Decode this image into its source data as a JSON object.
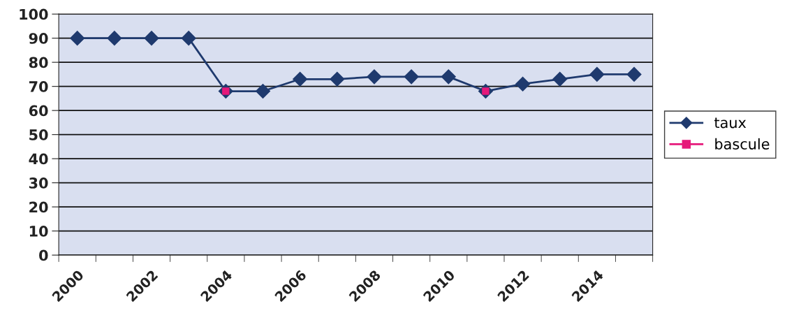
{
  "chart_data": {
    "type": "line",
    "categories": [
      "2000",
      null,
      "2002",
      null,
      "2004",
      null,
      "2006",
      null,
      "2008",
      null,
      "2010",
      null,
      "2012",
      null,
      "2014",
      null
    ],
    "series": [
      {
        "name": "taux",
        "color": "#1f3a6e",
        "marker": "diamond",
        "values": [
          90,
          90,
          90,
          90,
          68,
          68,
          73,
          73,
          74,
          74,
          74,
          68,
          71,
          73,
          75,
          75
        ]
      },
      {
        "name": "bascule",
        "type": "scatter",
        "color": "#e6197a",
        "marker": "square",
        "values": [
          null,
          null,
          null,
          null,
          68,
          null,
          null,
          null,
          null,
          null,
          null,
          68,
          null,
          null,
          null,
          null
        ]
      }
    ],
    "ylim": [
      0,
      100
    ],
    "yticks": [
      0,
      10,
      20,
      30,
      40,
      50,
      60,
      70,
      80,
      90,
      100
    ],
    "grid": "y",
    "legend": "right"
  }
}
